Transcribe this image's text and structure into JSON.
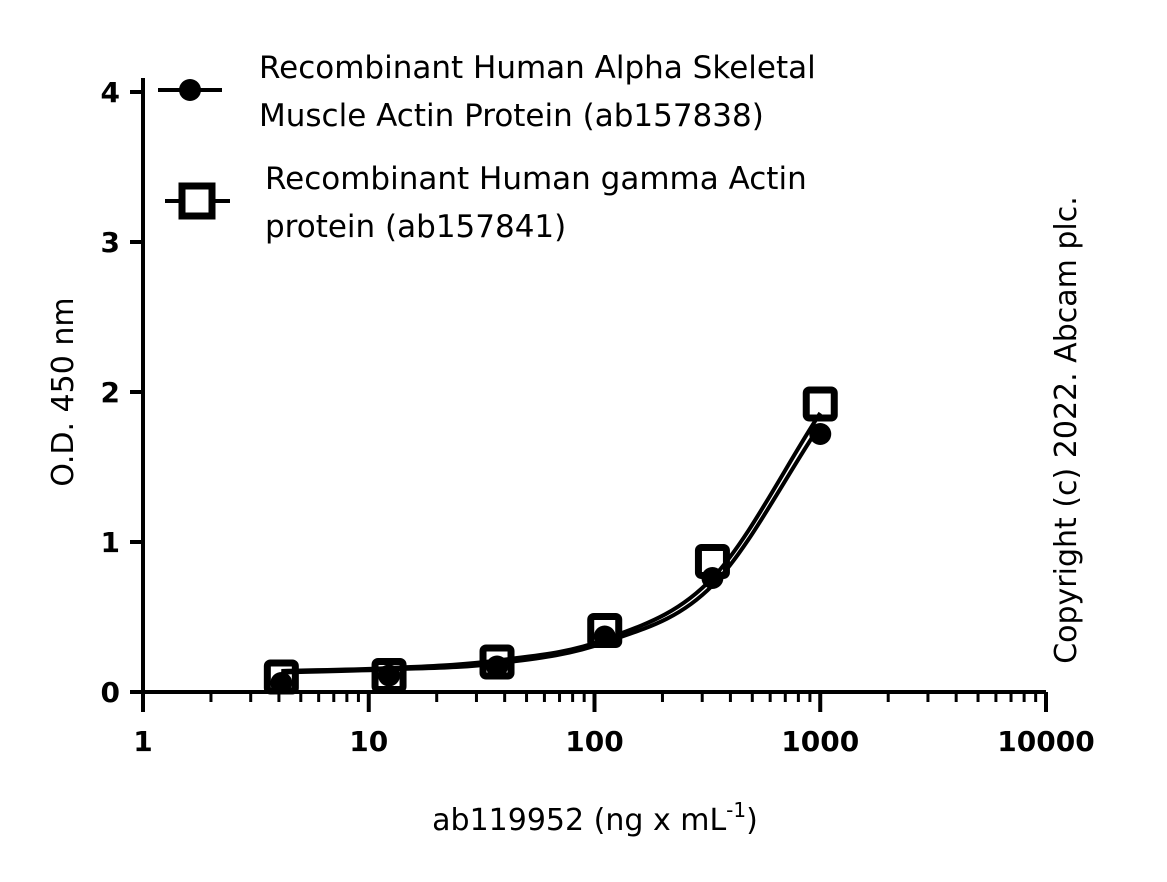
{
  "chart_data": {
    "type": "scatter",
    "x_scale": "log",
    "xlim": [
      1,
      10000
    ],
    "ylim": [
      0,
      4
    ],
    "x_ticks": [
      {
        "value": 1,
        "label": "1"
      },
      {
        "value": 10,
        "label": "10"
      },
      {
        "value": 100,
        "label": "100"
      },
      {
        "value": 1000,
        "label": "1000"
      },
      {
        "value": 10000,
        "label": "10000"
      }
    ],
    "y_ticks": [
      {
        "value": 0,
        "label": "0"
      },
      {
        "value": 1,
        "label": "1"
      },
      {
        "value": 2,
        "label": "2"
      },
      {
        "value": 3,
        "label": "3"
      },
      {
        "value": 4,
        "label": "4"
      }
    ],
    "xlabel": "ab119952 (ng x mL",
    "xlabel_superscript": "-1",
    "xlabel_suffix": ")",
    "ylabel": "O.D. 450 nm",
    "grid": false,
    "legend_position": "top-left",
    "series": [
      {
        "name_line1": "Recombinant Human Alpha Skeletal",
        "name_line2": "Muscle Actin Protein (ab157838)",
        "marker": "filled-circle",
        "color": "#000000",
        "x": [
          4.1,
          12.3,
          37,
          111,
          333,
          1000
        ],
        "y": [
          0.06,
          0.11,
          0.17,
          0.37,
          0.76,
          1.72
        ],
        "fit_x": [
          4.1,
          12.3,
          37,
          111,
          333,
          1000
        ],
        "fit_y": [
          0.13,
          0.15,
          0.19,
          0.33,
          0.71,
          1.78
        ]
      },
      {
        "name_line1": "Recombinant Human gamma Actin",
        "name_line2": "protein (ab157841)",
        "marker": "open-square",
        "color": "#000000",
        "x": [
          4.1,
          12.3,
          37,
          111,
          333,
          1000
        ],
        "y": [
          0.1,
          0.11,
          0.2,
          0.41,
          0.87,
          1.92
        ],
        "fit_x": [
          4.1,
          12.3,
          37,
          111,
          333,
          1000
        ],
        "fit_y": [
          0.14,
          0.16,
          0.21,
          0.35,
          0.76,
          1.86
        ]
      }
    ]
  },
  "copyright": "Copyright (c) 2022. Abcam plc."
}
